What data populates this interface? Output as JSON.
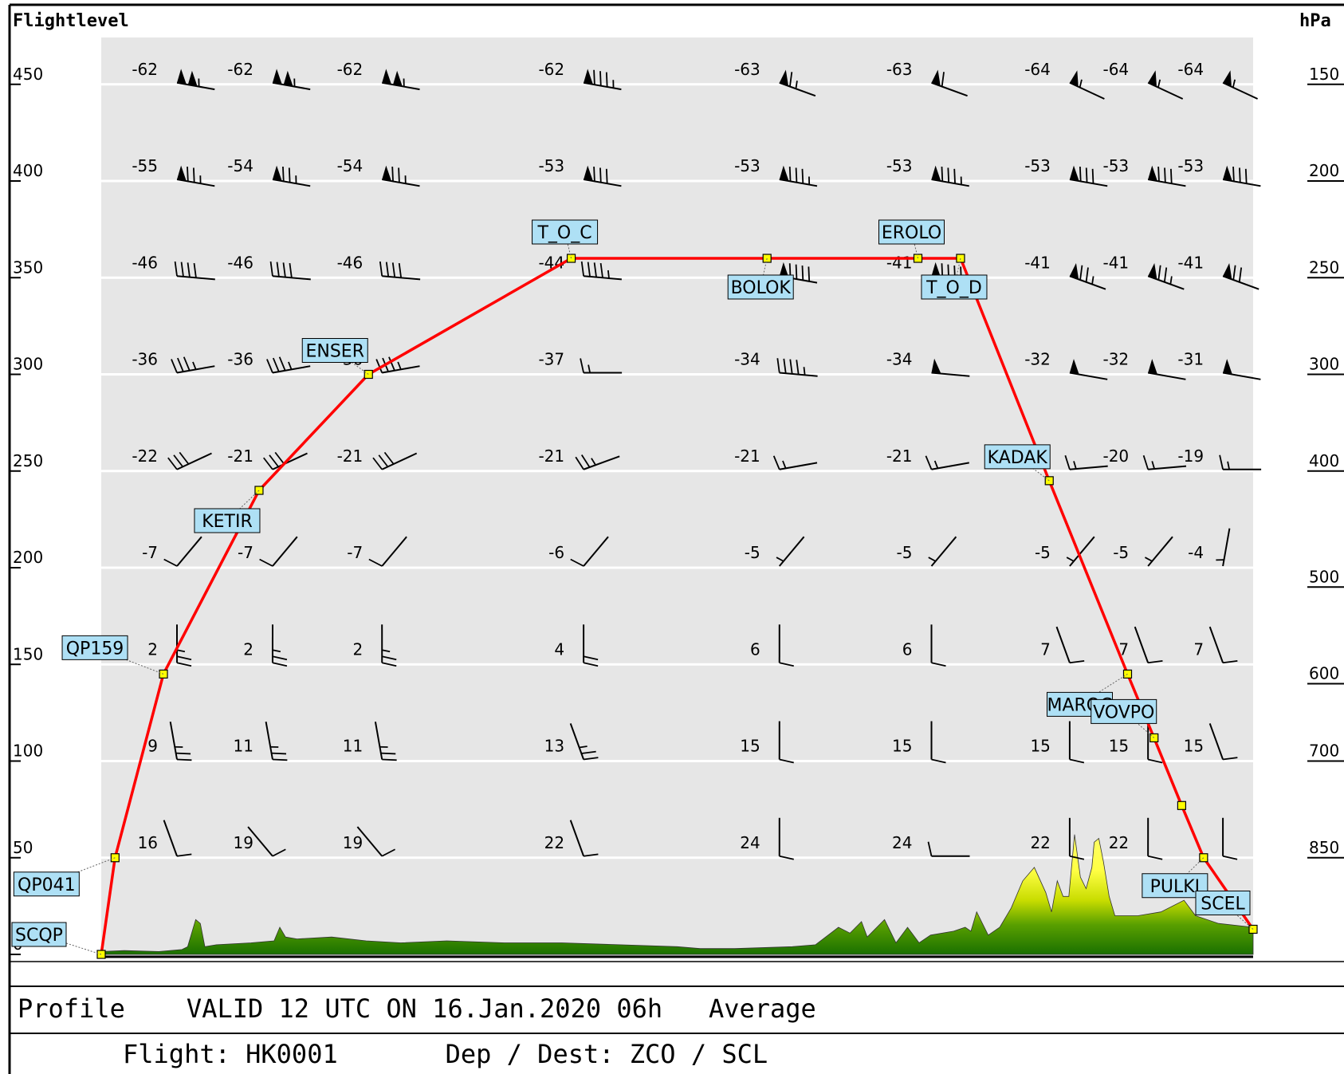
{
  "chart_data": {
    "type": "line",
    "left_axis_title": "Flightlevel",
    "right_axis_title": "hPa",
    "left_ticks": [
      {
        "fl": 450,
        "label": "450"
      },
      {
        "fl": 400,
        "label": "400"
      },
      {
        "fl": 350,
        "label": "350"
      },
      {
        "fl": 300,
        "label": "300"
      },
      {
        "fl": 250,
        "label": "250"
      },
      {
        "fl": 200,
        "label": "200"
      },
      {
        "fl": 150,
        "label": "150"
      },
      {
        "fl": 100,
        "label": "100"
      },
      {
        "fl": 50,
        "label": "50"
      },
      {
        "fl": 0,
        "label": "0"
      }
    ],
    "right_ticks": [
      {
        "fl": 450,
        "label": "150"
      },
      {
        "fl": 400,
        "label": "200"
      },
      {
        "fl": 350,
        "label": "250"
      },
      {
        "fl": 300,
        "label": "300"
      },
      {
        "fl": 250,
        "label": "400"
      },
      {
        "fl": 190,
        "label": "500"
      },
      {
        "fl": 140,
        "label": "600"
      },
      {
        "fl": 100,
        "label": "700"
      },
      {
        "fl": 50,
        "label": "850"
      }
    ],
    "flight_levels": [
      450,
      400,
      350,
      300,
      250,
      200,
      150,
      100,
      50
    ],
    "columns": [
      0.045,
      0.128,
      0.223,
      0.398,
      0.568,
      0.7,
      0.82,
      0.888,
      0.953
    ],
    "temperatures": [
      [
        "-62",
        "-62",
        "-62",
        "-62",
        "-63",
        "-63",
        "-64",
        "-64",
        "-64"
      ],
      [
        "-55",
        "-54",
        "-54",
        "-53",
        "-53",
        "-53",
        "-53",
        "-53",
        "-53"
      ],
      [
        "-46",
        "-46",
        "-46",
        "-44",
        "",
        "-41",
        "-41",
        "-41",
        "-41"
      ],
      [
        "-36",
        "-36",
        "-36",
        "-37",
        "-34",
        "-34",
        "-32",
        "-32",
        "-31"
      ],
      [
        "-22",
        "-21",
        "-21",
        "-21",
        "-21",
        "-21",
        "-20",
        "-20",
        "-19"
      ],
      [
        "-7",
        "-7",
        "-7",
        "-6",
        "-5",
        "-5",
        "-5",
        "-5",
        "-4"
      ],
      [
        "2",
        "2",
        "2",
        "4",
        "6",
        "6",
        "7",
        "7",
        "7"
      ],
      [
        "9",
        "11",
        "11",
        "13",
        "15",
        "15",
        "15",
        "15",
        "15"
      ],
      [
        "16",
        "19",
        "19",
        "22",
        "24",
        "24",
        "22",
        "22",
        ""
      ]
    ],
    "winds_blowing_toward_deg": [
      [
        100,
        100,
        100,
        100,
        110,
        110,
        115,
        115,
        115
      ],
      [
        100,
        100,
        100,
        100,
        100,
        100,
        100,
        100,
        100
      ],
      [
        95,
        95,
        95,
        95,
        100,
        100,
        110,
        110,
        110
      ],
      [
        80,
        80,
        80,
        90,
        95,
        95,
        100,
        100,
        100
      ],
      [
        65,
        65,
        65,
        70,
        80,
        80,
        85,
        85,
        90
      ],
      [
        40,
        40,
        40,
        40,
        40,
        40,
        40,
        40,
        10
      ],
      [
        0,
        0,
        0,
        0,
        0,
        0,
        340,
        340,
        340
      ],
      [
        350,
        350,
        350,
        340,
        0,
        0,
        0,
        0,
        340
      ],
      [
        340,
        320,
        320,
        340,
        0,
        90,
        0,
        0,
        0
      ]
    ],
    "wind_speeds_kt": [
      [
        105,
        105,
        105,
        85,
        65,
        60,
        55,
        55,
        55
      ],
      [
        75,
        75,
        75,
        80,
        85,
        85,
        80,
        80,
        80
      ],
      [
        40,
        40,
        40,
        45,
        90,
        90,
        75,
        75,
        70
      ],
      [
        35,
        35,
        35,
        15,
        45,
        50,
        50,
        50,
        50
      ],
      [
        30,
        30,
        30,
        25,
        15,
        15,
        15,
        15,
        15
      ],
      [
        10,
        10,
        10,
        10,
        5,
        5,
        5,
        5,
        5
      ],
      [
        25,
        25,
        25,
        20,
        10,
        10,
        10,
        10,
        10
      ],
      [
        25,
        25,
        25,
        25,
        10,
        10,
        10,
        10,
        10
      ],
      [
        10,
        10,
        10,
        10,
        10,
        10,
        10,
        10,
        10
      ]
    ],
    "route": [
      {
        "name": "SCQP",
        "x": 0.0,
        "fl": 0
      },
      {
        "name": "QP041",
        "x": 0.012,
        "fl": 50
      },
      {
        "name": "QP159",
        "x": 0.054,
        "fl": 145
      },
      {
        "name": "KETIR",
        "x": 0.137,
        "fl": 240
      },
      {
        "name": "ENSER",
        "x": 0.232,
        "fl": 300
      },
      {
        "name": "T_O_C",
        "x": 0.408,
        "fl": 360
      },
      {
        "name": "BOLOK",
        "x": 0.578,
        "fl": 360
      },
      {
        "name": "EROLO",
        "x": 0.709,
        "fl": 360
      },
      {
        "name": "T_O_D",
        "x": 0.746,
        "fl": 360
      },
      {
        "name": "KADAK",
        "x": 0.823,
        "fl": 245
      },
      {
        "name": "MAROC",
        "x": 0.891,
        "fl": 145
      },
      {
        "name": "VOVPO",
        "x": 0.914,
        "fl": 112
      },
      {
        "name": "",
        "x": 0.938,
        "fl": 77
      },
      {
        "name": "PULKI",
        "x": 0.957,
        "fl": 50
      },
      {
        "name": "SCEL",
        "x": 1.0,
        "fl": 13
      }
    ],
    "terrain_profile": [
      [
        0,
        1.5
      ],
      [
        0.02,
        2
      ],
      [
        0.05,
        1.5
      ],
      [
        0.07,
        2.5
      ],
      [
        0.075,
        4
      ],
      [
        0.082,
        18
      ],
      [
        0.086,
        16
      ],
      [
        0.09,
        4
      ],
      [
        0.1,
        5
      ],
      [
        0.13,
        6
      ],
      [
        0.15,
        7
      ],
      [
        0.155,
        14
      ],
      [
        0.16,
        9
      ],
      [
        0.17,
        8
      ],
      [
        0.2,
        9
      ],
      [
        0.23,
        7
      ],
      [
        0.26,
        6
      ],
      [
        0.3,
        7
      ],
      [
        0.35,
        6
      ],
      [
        0.4,
        6
      ],
      [
        0.45,
        5
      ],
      [
        0.5,
        4
      ],
      [
        0.52,
        3
      ],
      [
        0.55,
        3
      ],
      [
        0.6,
        4
      ],
      [
        0.62,
        5
      ],
      [
        0.64,
        14
      ],
      [
        0.65,
        11
      ],
      [
        0.66,
        17
      ],
      [
        0.665,
        9
      ],
      [
        0.68,
        18
      ],
      [
        0.69,
        6
      ],
      [
        0.7,
        14
      ],
      [
        0.71,
        6
      ],
      [
        0.72,
        10
      ],
      [
        0.74,
        12
      ],
      [
        0.75,
        14
      ],
      [
        0.755,
        12
      ],
      [
        0.76,
        22
      ],
      [
        0.765,
        16
      ],
      [
        0.77,
        10
      ],
      [
        0.78,
        14
      ],
      [
        0.79,
        24
      ],
      [
        0.8,
        38
      ],
      [
        0.81,
        45
      ],
      [
        0.82,
        32
      ],
      [
        0.825,
        22
      ],
      [
        0.83,
        38
      ],
      [
        0.835,
        30
      ],
      [
        0.84,
        30
      ],
      [
        0.845,
        62
      ],
      [
        0.85,
        40
      ],
      [
        0.855,
        34
      ],
      [
        0.86,
        45
      ],
      [
        0.862,
        58
      ],
      [
        0.866,
        60
      ],
      [
        0.87,
        48
      ],
      [
        0.875,
        30
      ],
      [
        0.88,
        20
      ],
      [
        0.9,
        20
      ],
      [
        0.92,
        22
      ],
      [
        0.94,
        28
      ],
      [
        0.95,
        20
      ],
      [
        0.97,
        16
      ],
      [
        1.0,
        14
      ]
    ]
  },
  "footer": {
    "line1": "Profile    VALID 12 UTC ON 16.Jan.2020 06h   Average",
    "line2": "Flight: HK0001       Dep / Dest: ZCO / SCL"
  },
  "colors": {
    "background": "#e6e6e6",
    "route": "#ff0000",
    "waypoint_fill": "#ffff00",
    "label_fill": "#aee0f5",
    "terrain_low": "#1f7a00",
    "terrain_high": "#ffff33"
  }
}
